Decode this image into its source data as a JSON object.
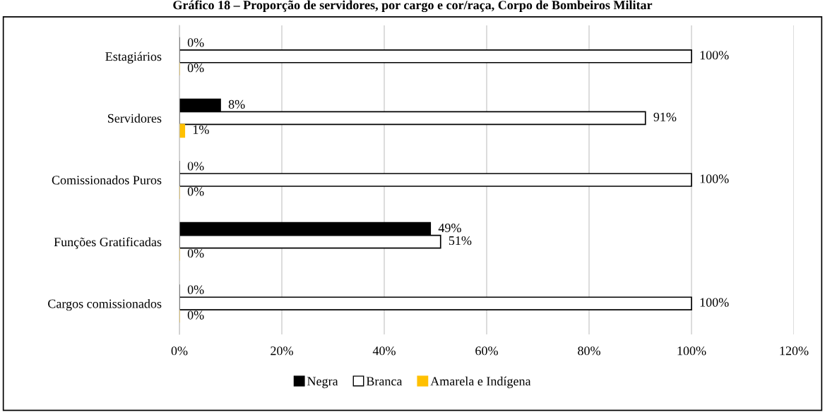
{
  "chart_data": {
    "type": "bar",
    "orientation": "horizontal",
    "title": "Gráfico 18 – Proporção de servidores, por cargo e cor/raça, Corpo de Bombeiros Militar",
    "categories": [
      "Estagiários",
      "Servidores",
      "Comissionados Puros",
      "Funções Gratificadas",
      "Cargos comissionados"
    ],
    "series": [
      {
        "name": "Negra",
        "color": "#000000",
        "values": [
          0,
          8,
          0,
          49,
          0
        ],
        "value_labels": [
          "0%",
          "8%",
          "0%",
          "49%",
          "0%"
        ]
      },
      {
        "name": "Branca",
        "color": "#ffffff",
        "values": [
          100,
          91,
          100,
          51,
          100
        ],
        "value_labels": [
          "100%",
          "91%",
          "100%",
          "51%",
          "100%"
        ]
      },
      {
        "name": "Amarela e Indígena",
        "color": "#ffc000",
        "values": [
          0,
          1,
          0,
          0,
          0
        ],
        "value_labels": [
          "0%",
          "1%",
          "0%",
          "0%",
          "0%"
        ]
      }
    ],
    "xlim": [
      0,
      120
    ],
    "xticks": [
      {
        "value": 0,
        "label": "0%"
      },
      {
        "value": 20,
        "label": "20%"
      },
      {
        "value": 40,
        "label": "40%"
      },
      {
        "value": 60,
        "label": "60%"
      },
      {
        "value": 80,
        "label": "80%"
      },
      {
        "value": 100,
        "label": "100%"
      },
      {
        "value": 120,
        "label": "120%"
      }
    ],
    "grid": "x",
    "legend": "bottom"
  }
}
